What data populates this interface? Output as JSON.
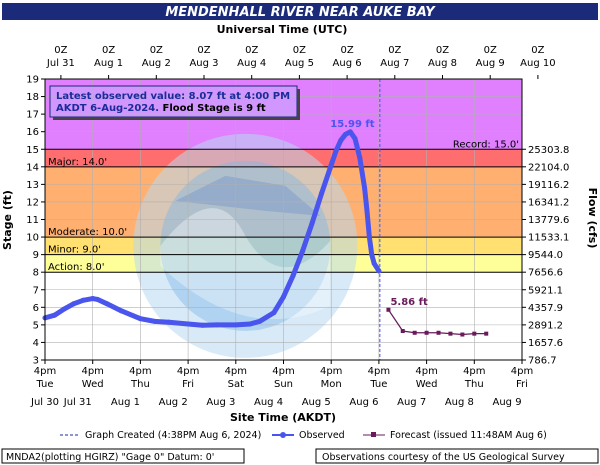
{
  "chart_data": {
    "type": "line",
    "title": "MENDENHALL RIVER NEAR AUKE BAY",
    "top_axis_title": "Universal Time (UTC)",
    "top_ticks": [
      {
        "line1": "0Z",
        "line2": "Jul 31"
      },
      {
        "line1": "0Z",
        "line2": "Aug 1"
      },
      {
        "line1": "0Z",
        "line2": "Aug 2"
      },
      {
        "line1": "0Z",
        "line2": "Aug 3"
      },
      {
        "line1": "0Z",
        "line2": "Aug 4"
      },
      {
        "line1": "0Z",
        "line2": "Aug 5"
      },
      {
        "line1": "0Z",
        "line2": "Aug 6"
      },
      {
        "line1": "0Z",
        "line2": "Aug 7"
      },
      {
        "line1": "0Z",
        "line2": "Aug 8"
      },
      {
        "line1": "0Z",
        "line2": "Aug 9"
      },
      {
        "line1": "0Z",
        "line2": "Aug 10"
      }
    ],
    "xlabel": "Site Time (AKDT)",
    "bottom_ticks": [
      {
        "line1": "4pm",
        "line2": "Tue",
        "line3": "Jul 30"
      },
      {
        "line1": "4pm",
        "line2": "Wed",
        "line3": "Jul 31"
      },
      {
        "line1": "4pm",
        "line2": "Thu",
        "line3": "Aug 1"
      },
      {
        "line1": "4pm",
        "line2": "Fri",
        "line3": "Aug 2"
      },
      {
        "line1": "4pm",
        "line2": "Sat",
        "line3": "Aug 3"
      },
      {
        "line1": "4pm",
        "line2": "Sun",
        "line3": "Aug 4"
      },
      {
        "line1": "4pm",
        "line2": "Mon",
        "line3": "Aug 5"
      },
      {
        "line1": "4pm",
        "line2": "Tue",
        "line3": "Aug 6"
      },
      {
        "line1": "4pm",
        "line2": "Wed",
        "line3": "Aug 7"
      },
      {
        "line1": "4pm",
        "line2": "Thu",
        "line3": "Aug 8"
      },
      {
        "line1": "4pm",
        "line2": "Fri",
        "line3": "Aug 9"
      }
    ],
    "xlim_days": [
      0,
      10
    ],
    "ylabel": "Stage (ft)",
    "ylim": [
      3,
      19
    ],
    "y_ticks": [
      3,
      4,
      5,
      6,
      7,
      8,
      9,
      10,
      11,
      12,
      13,
      14,
      15,
      16,
      17,
      18,
      19
    ],
    "y2label": "Flow (cfs)",
    "y2_ticks": [
      {
        "stage": 15,
        "label": "25303.8"
      },
      {
        "stage": 14,
        "label": "22104.0"
      },
      {
        "stage": 13,
        "label": "19116.2"
      },
      {
        "stage": 12,
        "label": "16341.2"
      },
      {
        "stage": 11,
        "label": "13779.6"
      },
      {
        "stage": 10,
        "label": "11533.1"
      },
      {
        "stage": 9,
        "label": "9544.0"
      },
      {
        "stage": 8,
        "label": "7656.6"
      },
      {
        "stage": 7,
        "label": "5921.1"
      },
      {
        "stage": 6,
        "label": "4357.9"
      },
      {
        "stage": 5,
        "label": "2891.2"
      },
      {
        "stage": 4,
        "label": "1657.6"
      },
      {
        "stage": 3,
        "label": "786.7"
      }
    ],
    "flood_categories": [
      {
        "name": "Record",
        "label": "Record: 15.0'",
        "value": 15.0,
        "color": "#cc66ff"
      },
      {
        "name": "Major",
        "label": "Major: 14.0'",
        "value": 14.0,
        "color": "#ff3333"
      },
      {
        "name": "Moderate",
        "label": "Moderate: 10.0'",
        "value": 10.0,
        "color": "#ff9933"
      },
      {
        "name": "Minor",
        "label": "Minor: 9.0'",
        "value": 9.0,
        "color": "#ffcc00"
      },
      {
        "name": "Action",
        "label": "Action: 8.0'",
        "value": 8.0,
        "color": "#ffff33"
      }
    ],
    "band_colors": {
      "record": "#e080ff",
      "major": "#ff6e6e",
      "moderate": "#ffb070",
      "minor": "#ffe070",
      "action": "#ffff99",
      "normal": "#ffffff"
    },
    "info_box": {
      "line1": "Latest observed value: 8.07 ft at 4:00 PM",
      "line2a": "AKDT 6-Aug-2024.",
      "line2b": " Flood Stage is 9 ft"
    },
    "series": [
      {
        "name": "Observed",
        "color": "#4a55ee",
        "x": [
          0.0,
          0.2,
          0.4,
          0.6,
          0.8,
          1.0,
          1.1,
          1.3,
          1.6,
          2.0,
          2.3,
          2.6,
          3.0,
          3.3,
          3.6,
          4.0,
          4.3,
          4.5,
          4.8,
          5.0,
          5.2,
          5.4,
          5.6,
          5.8,
          6.0,
          6.1,
          6.2,
          6.3,
          6.4,
          6.5,
          6.6,
          6.7,
          6.75,
          6.8,
          6.85,
          6.9,
          7.0
        ],
        "y": [
          5.4,
          5.55,
          5.9,
          6.2,
          6.4,
          6.5,
          6.45,
          6.2,
          5.8,
          5.35,
          5.2,
          5.15,
          5.05,
          4.98,
          5.0,
          5.0,
          5.05,
          5.2,
          5.7,
          6.6,
          7.8,
          9.2,
          10.8,
          12.5,
          14.1,
          14.9,
          15.5,
          15.85,
          15.99,
          15.6,
          14.5,
          12.8,
          11.5,
          10.0,
          9.0,
          8.5,
          8.07
        ]
      },
      {
        "name": "Forecast (issued 11:48AM Aug 6)",
        "color": "#6a1a5a",
        "x": [
          7.2,
          7.5,
          7.75,
          8.0,
          8.25,
          8.5,
          8.75,
          9.0,
          9.25
        ],
        "y": [
          5.86,
          4.65,
          4.55,
          4.55,
          4.55,
          4.5,
          4.45,
          4.5,
          4.5
        ]
      }
    ],
    "annotations": [
      {
        "text": "15.99 ft",
        "x": 6.4,
        "y": 15.99,
        "color": "#4a55ee"
      },
      {
        "text": "5.86 ft",
        "x": 7.2,
        "y": 5.86,
        "color": "#6a1a5a"
      }
    ],
    "graph_created_x": 7.02,
    "legend": {
      "created": "Graph Created (4:38PM Aug 6, 2024)",
      "observed": "Observed",
      "forecast": "Forecast (issued 11:48AM Aug 6)"
    },
    "footer_left": "MNDA2(plotting HGIRZ) \"Gage 0\" Datum: 0'",
    "footer_right": "Observations courtesy of the US Geological Survey",
    "watermark": "NATIONAL OCEANIC AND ATMOSPHERIC ADMINISTRATION / U.S. DEPARTMENT OF COMMERCE / NOAA"
  }
}
